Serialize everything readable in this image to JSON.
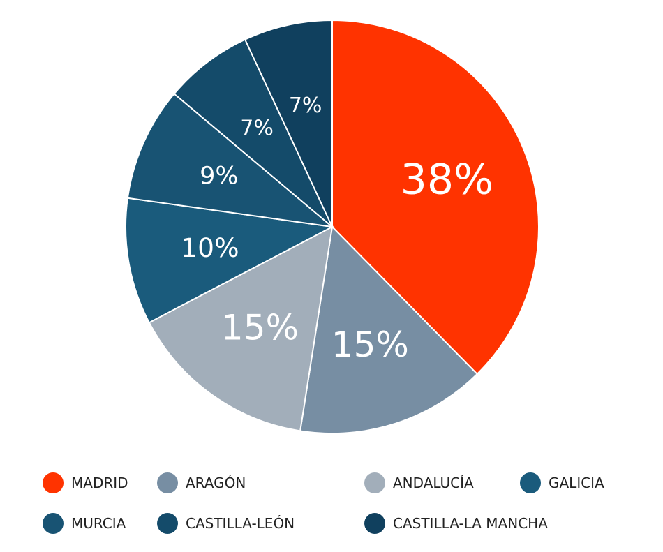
{
  "chart_data": {
    "type": "pie",
    "categories": [
      "MADRID",
      "ARAGÓN",
      "ANDALUCÍA",
      "GALICIA",
      "MURCIA",
      "CASTILLA-LEÓN",
      "CASTILLA-LA MANCHA"
    ],
    "values": [
      38,
      15,
      15,
      10,
      9,
      7,
      7
    ],
    "value_labels": [
      "38%",
      "15%",
      "15%",
      "10%",
      "9%",
      "7%",
      "7%"
    ],
    "colors": [
      "#ff3300",
      "#778ea3",
      "#a2aeba",
      "#1a5b7c",
      "#185373",
      "#144b6a",
      "#10405e"
    ]
  }
}
